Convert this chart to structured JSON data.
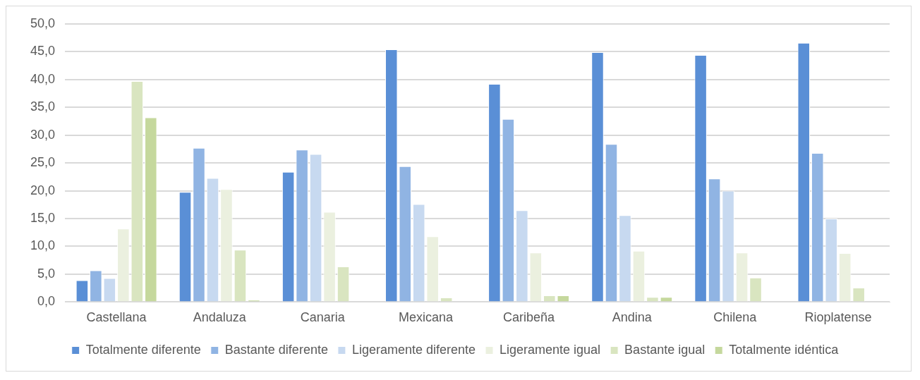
{
  "chart_data": {
    "type": "bar",
    "categories": [
      "Castellana",
      "Andaluza",
      "Canaria",
      "Mexicana",
      "Caribeña",
      "Andina",
      "Chilena",
      "Rioplatense"
    ],
    "series": [
      {
        "name": "Totalmente diferente",
        "color": "#5a8fd6",
        "values": [
          3.9,
          19.8,
          23.4,
          45.4,
          39.2,
          44.9,
          44.4,
          46.6
        ]
      },
      {
        "name": "Bastante diferente",
        "color": "#90b4e3",
        "values": [
          5.7,
          27.7,
          27.4,
          24.4,
          32.9,
          28.4,
          22.2,
          26.8
        ]
      },
      {
        "name": "Ligeramente diferente",
        "color": "#c7d9f0",
        "values": [
          4.3,
          22.3,
          26.6,
          17.6,
          16.5,
          15.6,
          20.0,
          15.0
        ]
      },
      {
        "name": "Ligeramente igual",
        "color": "#ebf0df",
        "values": [
          13.2,
          20.3,
          16.2,
          11.8,
          8.9,
          9.2,
          8.9,
          8.8
        ]
      },
      {
        "name": "Bastante igual",
        "color": "#d9e5c0",
        "values": [
          39.7,
          9.4,
          6.4,
          0.8,
          1.2,
          0.9,
          4.4,
          2.6
        ]
      },
      {
        "name": "Totalmente idéntica",
        "color": "#c5d89d",
        "values": [
          33.2,
          0.4,
          0,
          0,
          1.2,
          0.9,
          0,
          0
        ]
      }
    ],
    "ylim": [
      0,
      50
    ],
    "yticks": [
      {
        "value": 0,
        "label": "0,0"
      },
      {
        "value": 5,
        "label": "5,0"
      },
      {
        "value": 10,
        "label": "10,0"
      },
      {
        "value": 15,
        "label": "15,0"
      },
      {
        "value": 20,
        "label": "20,0"
      },
      {
        "value": 25,
        "label": "25,0"
      },
      {
        "value": 30,
        "label": "30,0"
      },
      {
        "value": 35,
        "label": "35,0"
      },
      {
        "value": 40,
        "label": "40,0"
      },
      {
        "value": 45,
        "label": "45,0"
      },
      {
        "value": 50,
        "label": "50,0"
      }
    ],
    "grid": "y",
    "legend": "bottom"
  }
}
